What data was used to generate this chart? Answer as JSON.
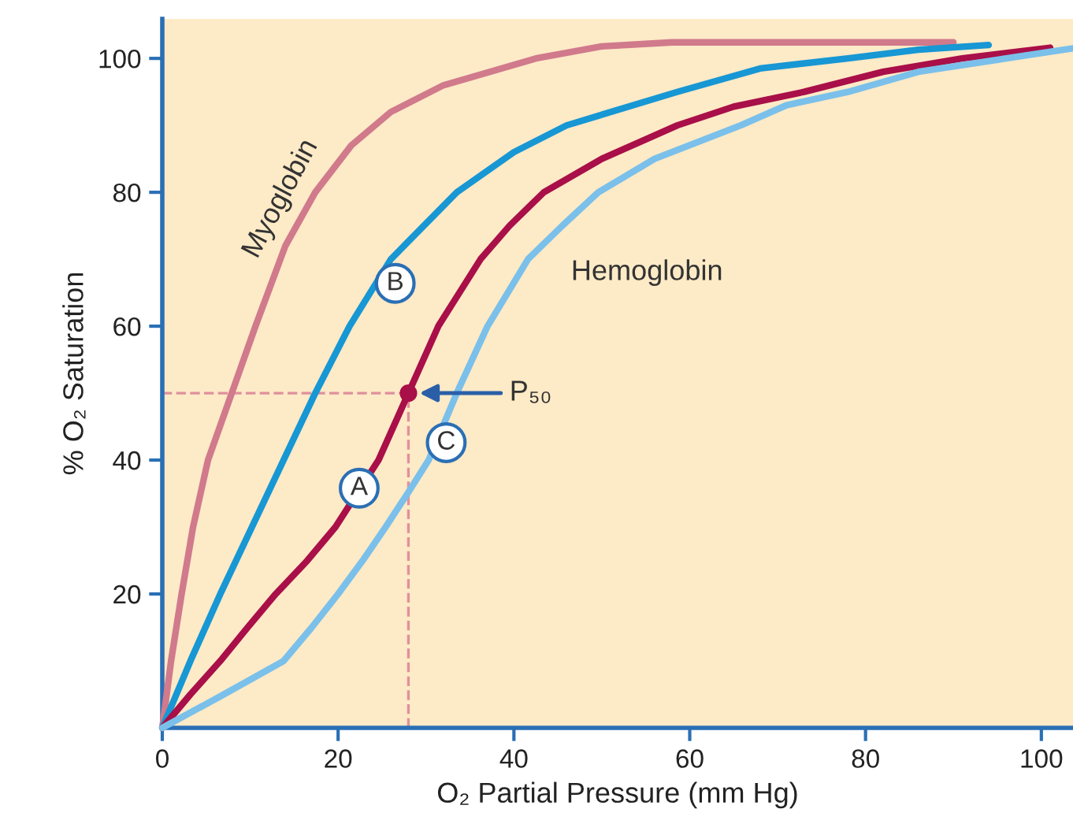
{
  "chart_data": {
    "type": "line",
    "xlabel": "O₂ Partial Pressure (mm Hg)",
    "ylabel": "% O₂ Saturation",
    "xlim": [
      0,
      103.6
    ],
    "ylim": [
      0,
      105.9
    ],
    "xticks": [
      0,
      20,
      40,
      60,
      80,
      100
    ],
    "yticks": [
      20,
      40,
      60,
      80,
      100
    ],
    "grid": false,
    "marker": "none",
    "line_style": "solid",
    "series": [
      {
        "name": "Myoglobin",
        "color": "#d07a8c",
        "x": [
          0,
          1,
          2.2,
          3.5,
          5.2,
          7.9,
          10.6,
          14,
          17.4,
          21.5,
          26,
          32,
          42.5,
          50,
          58,
          90
        ],
        "values": [
          0,
          10,
          20,
          30,
          40,
          50,
          60,
          72,
          80,
          87,
          92,
          96,
          100,
          101.8,
          102.4,
          102.4
        ]
      },
      {
        "color": "#1797d4",
        "x": [
          0,
          3.2,
          6.6,
          10.2,
          13.8,
          17.4,
          21.3,
          26,
          33.5,
          40,
          46,
          58.6,
          68,
          78,
          86,
          94
        ],
        "values": [
          0,
          10,
          20,
          30,
          40,
          50,
          60,
          70,
          80,
          86,
          90,
          95,
          98.5,
          100,
          101.3,
          102
        ]
      },
      {
        "color": "#a90f48",
        "x": [
          0,
          3.2,
          6.6,
          9.7,
          12.9,
          16.5,
          19.7,
          24.6,
          28,
          31.4,
          36.2,
          39.5,
          43.4,
          50,
          58.6,
          65,
          73,
          82,
          91,
          101
        ],
        "values": [
          0,
          5,
          10,
          15,
          20,
          25,
          30,
          40,
          50,
          60,
          70,
          75,
          80,
          85,
          90,
          92.8,
          95,
          98,
          100,
          101.6
        ]
      },
      {
        "color": "#7ac0ea",
        "x": [
          0,
          7,
          13.8,
          17,
          20,
          22.8,
          25.4,
          27.9,
          30.3,
          33.5,
          37,
          41.6,
          45.5,
          49.6,
          56,
          65.8,
          71,
          78,
          86,
          96,
          103.6
        ],
        "values": [
          0,
          5,
          10,
          15,
          20,
          25,
          30,
          35,
          40,
          50,
          60,
          70,
          75,
          80,
          85,
          90,
          93,
          95,
          98,
          100,
          101.5
        ]
      }
    ],
    "ref_lines": [
      {
        "axis": "x",
        "value": 28,
        "color": "#e0909c",
        "line_style": "dashed"
      },
      {
        "axis": "y",
        "value": 50,
        "color": "#e0909c",
        "line_style": "dashed"
      }
    ],
    "annotations": [
      "P₅₀",
      {
        "text": "A",
        "x": 22.4,
        "y": 35.8
      },
      {
        "text": "B",
        "x": 26.5,
        "y": 66.4
      },
      {
        "text": "C",
        "x": 32.3,
        "y": 42.6
      },
      "Hemoglobin"
    ]
  }
}
